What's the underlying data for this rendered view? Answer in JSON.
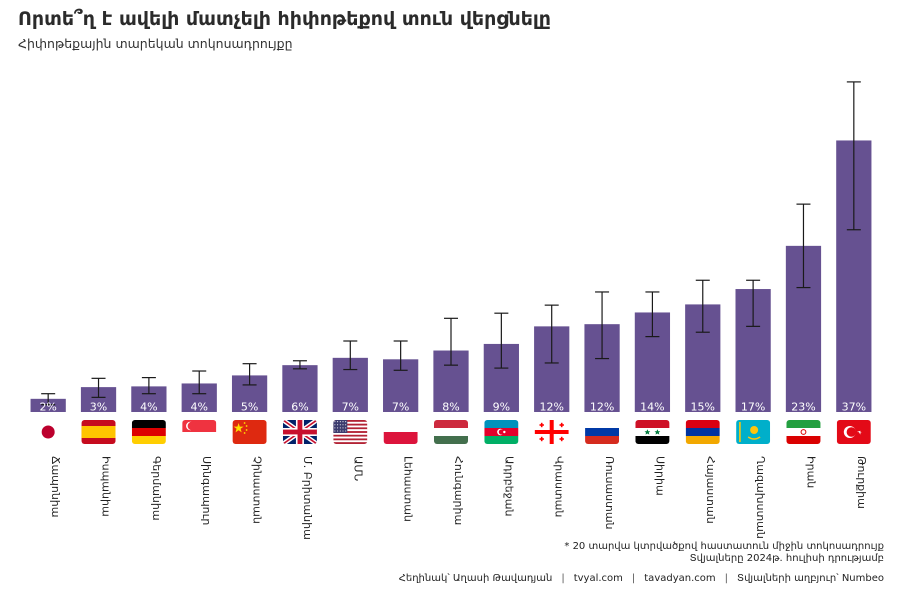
{
  "title": "Որտե՞ղ է ավելի մատչելի հիփոթեքով տուն վերցնելը",
  "subtitle": "Հիփոթեքային տարեկան տոկոսադրույքը",
  "note_line1": "* 20 տարվա կտրվածքով հաստատուն միջին տոկոսադրույք",
  "note_line2": "Տվյալները 2024թ. հուլիսի դրությամբ",
  "footer": {
    "author": "Հեղինակ՝ Աղասի Թավադյան",
    "site1": "tvyal.com",
    "site2": "tavadyan.com",
    "source": "Տվյալների աղբյուր՝ Numbeo",
    "separator": "|"
  },
  "colors": {
    "bar": "#665191",
    "label_text": "#ffffff",
    "error_bar": "#1a1a1a"
  },
  "chart_data": {
    "type": "bar",
    "categories": [
      "Ճապոնիա",
      "Իսպանիա",
      "Գերմանիա",
      "Սինգապուր",
      "Չինաստան",
      "Մ. Բրիտանիա",
      "ԱՄՆ",
      "Լեհաստան",
      "Հունգարիա",
      "Ադրբեջան",
      "Վրաստան",
      "Ռուսաստան",
      "Սիրիա",
      "Հայաստան",
      "Ղազախստան",
      "Իրան",
      "Թուրքիա"
    ],
    "flags": [
      "flag-japan",
      "flag-spain",
      "flag-germany",
      "flag-singapore",
      "flag-china",
      "flag-united-kingdom",
      "flag-usa",
      "flag-poland",
      "flag-hungary",
      "flag-azerbaijan",
      "flag-georgia",
      "flag-russia",
      "flag-syria",
      "flag-armenia",
      "flag-kazakhstan",
      "flag-iran",
      "flag-turkey"
    ],
    "values": [
      1.8,
      3.4,
      3.5,
      3.9,
      5.0,
      6.4,
      7.4,
      7.2,
      8.4,
      9.3,
      11.7,
      12.0,
      13.6,
      14.7,
      16.8,
      22.7,
      37.1
    ],
    "labels": [
      "2%",
      "3%",
      "4%",
      "4%",
      "5%",
      "6%",
      "7%",
      "7%",
      "8%",
      "9%",
      "12%",
      "12%",
      "14%",
      "15%",
      "17%",
      "23%",
      "37%"
    ],
    "error_low": [
      1.0,
      2.0,
      2.5,
      2.5,
      3.7,
      5.9,
      5.8,
      5.7,
      6.4,
      6.0,
      6.7,
      7.3,
      10.3,
      10.9,
      11.7,
      17.0,
      24.9
    ],
    "error_high": [
      2.5,
      4.6,
      4.7,
      5.6,
      6.6,
      7.0,
      9.7,
      9.7,
      12.8,
      13.5,
      14.6,
      16.4,
      16.4,
      18.0,
      18.0,
      28.4,
      45.1
    ],
    "ylim": [
      0,
      47
    ]
  }
}
